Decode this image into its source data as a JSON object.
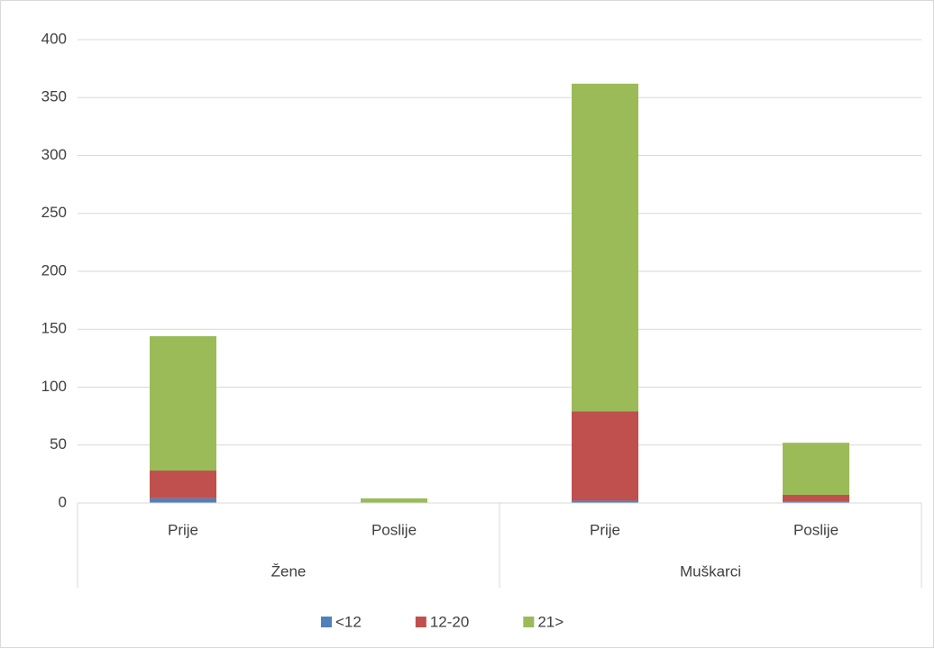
{
  "chart_data": {
    "type": "bar",
    "stacked": true,
    "categories": [
      "Prije",
      "Poslije",
      "Prije",
      "Poslije"
    ],
    "groups": [
      "Žene",
      "Muškarci"
    ],
    "series": [
      {
        "name": "<12",
        "color": "#4f81bd",
        "values": [
          4,
          0,
          2,
          1
        ]
      },
      {
        "name": "12-20",
        "color": "#c0504d",
        "values": [
          24,
          0,
          77,
          6
        ]
      },
      {
        "name": "21>",
        "color": "#9bbb59",
        "values": [
          116,
          4,
          283,
          45
        ]
      }
    ],
    "ylim": [
      0,
      400
    ],
    "yticks": [
      0,
      50,
      100,
      150,
      200,
      250,
      300,
      350,
      400
    ],
    "grid": true,
    "legend": "bottom"
  }
}
